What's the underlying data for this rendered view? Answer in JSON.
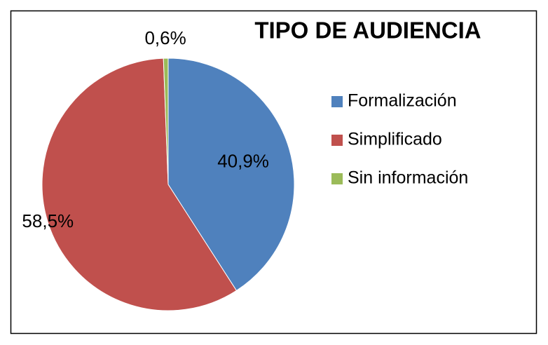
{
  "chart_data": {
    "type": "pie",
    "title": "TIPO DE AUDIENCIA",
    "categories": [
      "Formalización",
      "Simplificado",
      "Sin información"
    ],
    "values": [
      40.9,
      58.5,
      0.6
    ],
    "value_labels": [
      "40,9%",
      "58,5%",
      "0,6%"
    ],
    "colors": [
      "#4f81bd",
      "#c0504d",
      "#9bbb59"
    ],
    "legend": "right"
  }
}
